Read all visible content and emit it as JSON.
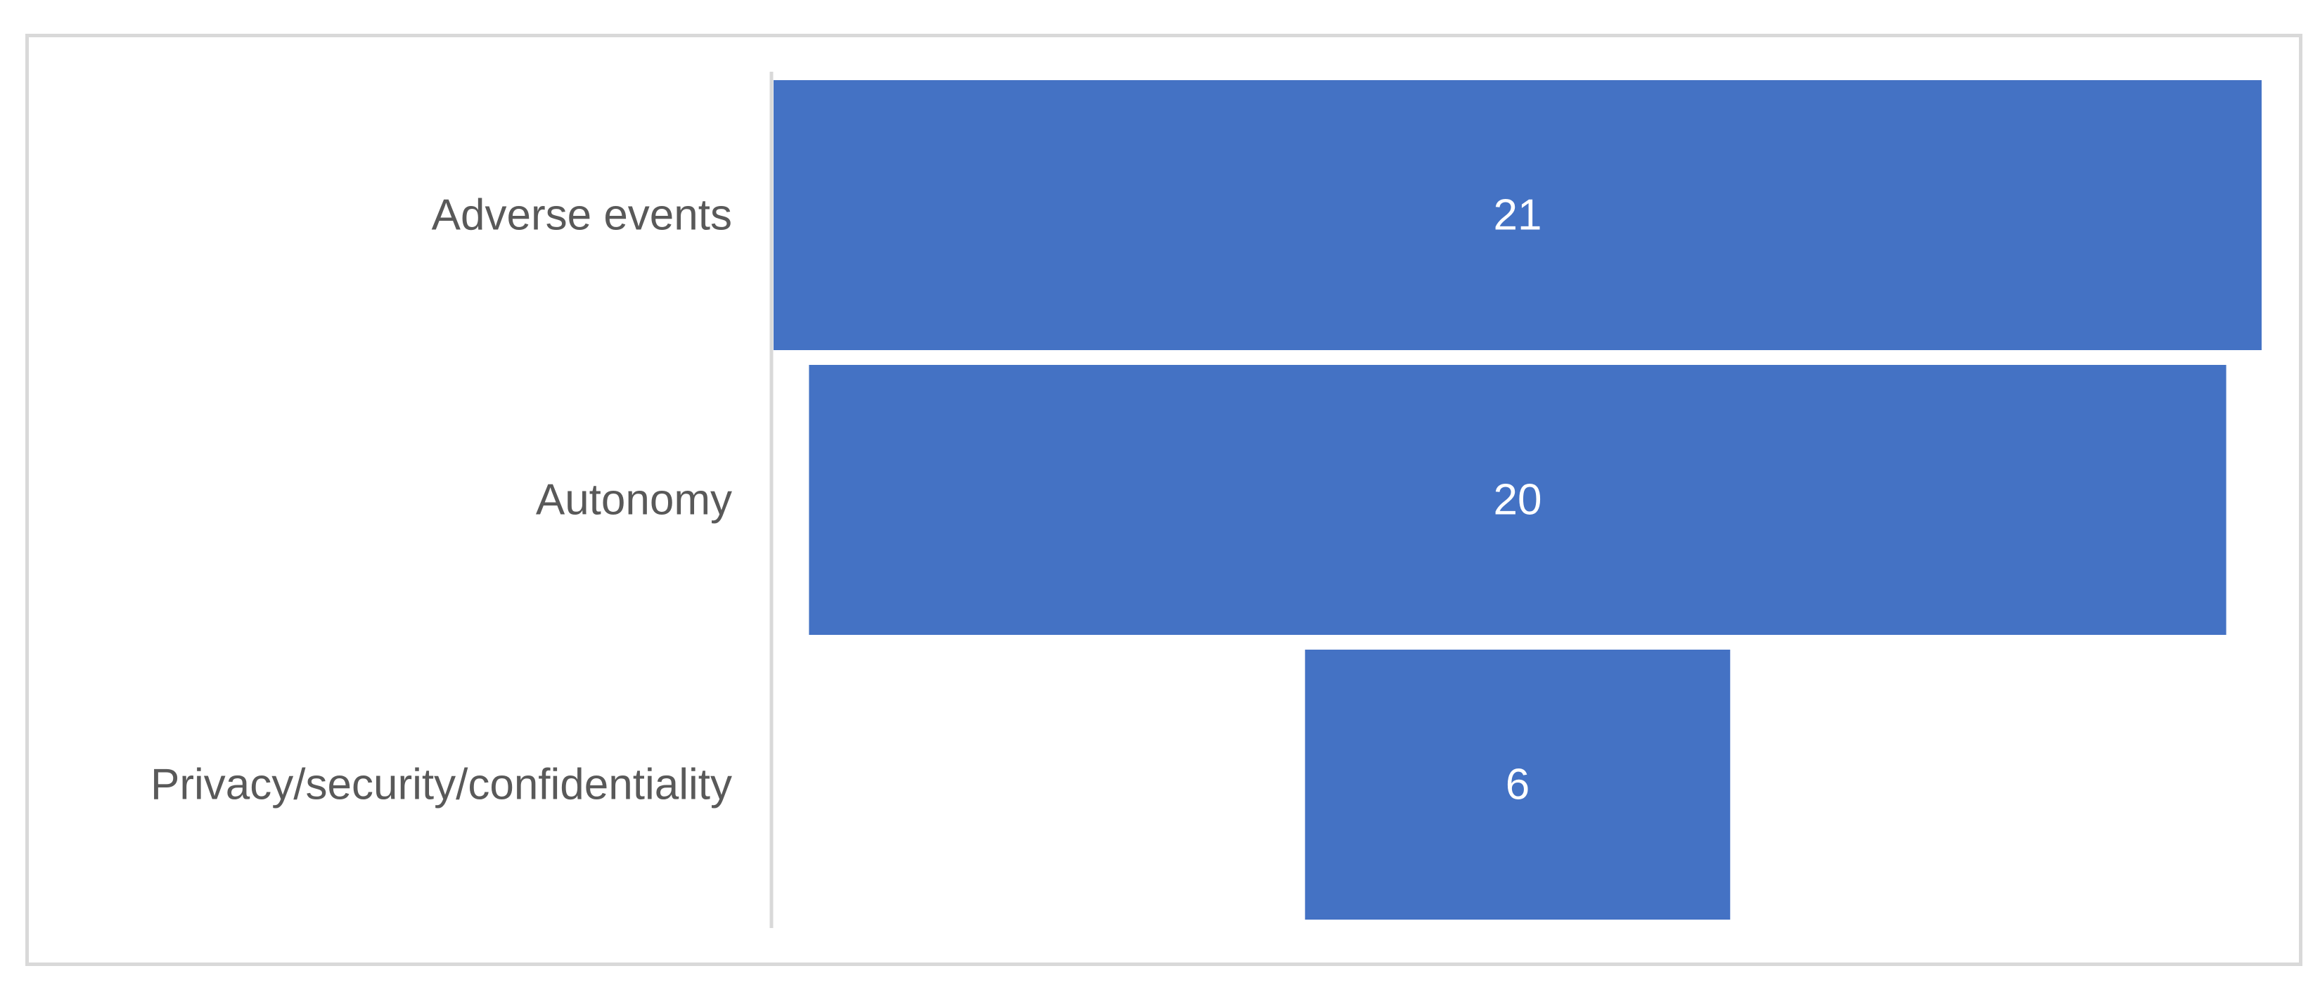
{
  "chart_data": {
    "type": "bar",
    "subtype": "funnel",
    "orientation": "horizontal",
    "categories": [
      "Adverse events",
      "Autonomy",
      "Privacy/security/confidentiality"
    ],
    "values": [
      21,
      20,
      6
    ],
    "title": "",
    "xlabel": "",
    "ylabel": "",
    "xlim": [
      0,
      21
    ],
    "grid": false,
    "legend": "none",
    "data_labels": true
  },
  "colors": {
    "bar": "#4472c4",
    "category_text": "#595959",
    "data_label_text": "#ffffff",
    "axis_line": "#d9d9d9",
    "frame_border": "#d9d9d9"
  }
}
